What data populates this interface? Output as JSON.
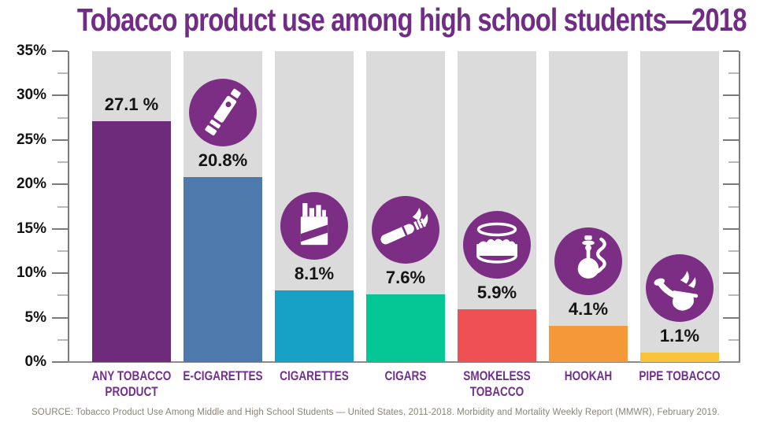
{
  "title": "Tobacco product use among high school students—2018",
  "source_note": "SOURCE: Tobacco Product Use Among Middle and High School Students — United States, 2011-2018. Morbidity and Mortality Weekly Report (MMWR), February 2019.",
  "colors": {
    "title_purple": "#712c85",
    "icon_circle_purple": "#7b2e83",
    "column_background_gray": "#dcdbdb",
    "axis_gray": "#7b7b7b",
    "category_label_purple": "#71308a",
    "source_text_gray": "#8a8478"
  },
  "chart_data": {
    "type": "bar",
    "title": "Tobacco product use among high school students—2018",
    "xlabel": "",
    "ylabel": "",
    "ylim": [
      0,
      35
    ],
    "grid": false,
    "legend": null,
    "y_axis": {
      "tick_labels": [
        "35%",
        "30%",
        "25%",
        "20%",
        "15%",
        "10%",
        "5%",
        "0%"
      ],
      "major_tick_interval": 5,
      "minor_tick_interval": 2.5,
      "mirrored_right_axis": true
    },
    "categories": [
      "ANY TOBACCO PRODUCT",
      "E-CIGARETTES",
      "CIGARETTES",
      "CIGARS",
      "SMOKELESS TOBACCO",
      "HOOKAH",
      "PIPE TOBACCO"
    ],
    "values": [
      27.1,
      20.8,
      8.1,
      7.6,
      5.9,
      4.1,
      1.1
    ],
    "bars": [
      {
        "category": "ANY TOBACCO PRODUCT",
        "value": 27.1,
        "value_label": "27.1 %",
        "color": "#6e2a7b",
        "icon": "none"
      },
      {
        "category": "E-CIGARETTES",
        "value": 20.8,
        "value_label": "20.8%",
        "color": "#4e79ad",
        "icon": "e-cigarette-icon"
      },
      {
        "category": "CIGARETTES",
        "value": 8.1,
        "value_label": "8.1%",
        "color": "#17a0c5",
        "icon": "cigarette-pack-icon"
      },
      {
        "category": "CIGARS",
        "value": 7.6,
        "value_label": "7.6%",
        "color": "#04c795",
        "icon": "cigar-icon"
      },
      {
        "category": "SMOKELESS TOBACCO",
        "value": 5.9,
        "value_label": "5.9%",
        "color": "#ee5053",
        "icon": "smokeless-tobacco-tin-icon"
      },
      {
        "category": "HOOKAH",
        "value": 4.1,
        "value_label": "4.1%",
        "color": "#f5983a",
        "icon": "hookah-icon"
      },
      {
        "category": "PIPE TOBACCO",
        "value": 1.1,
        "value_label": "1.1%",
        "color": "#f7c33a",
        "icon": "pipe-icon"
      }
    ]
  }
}
